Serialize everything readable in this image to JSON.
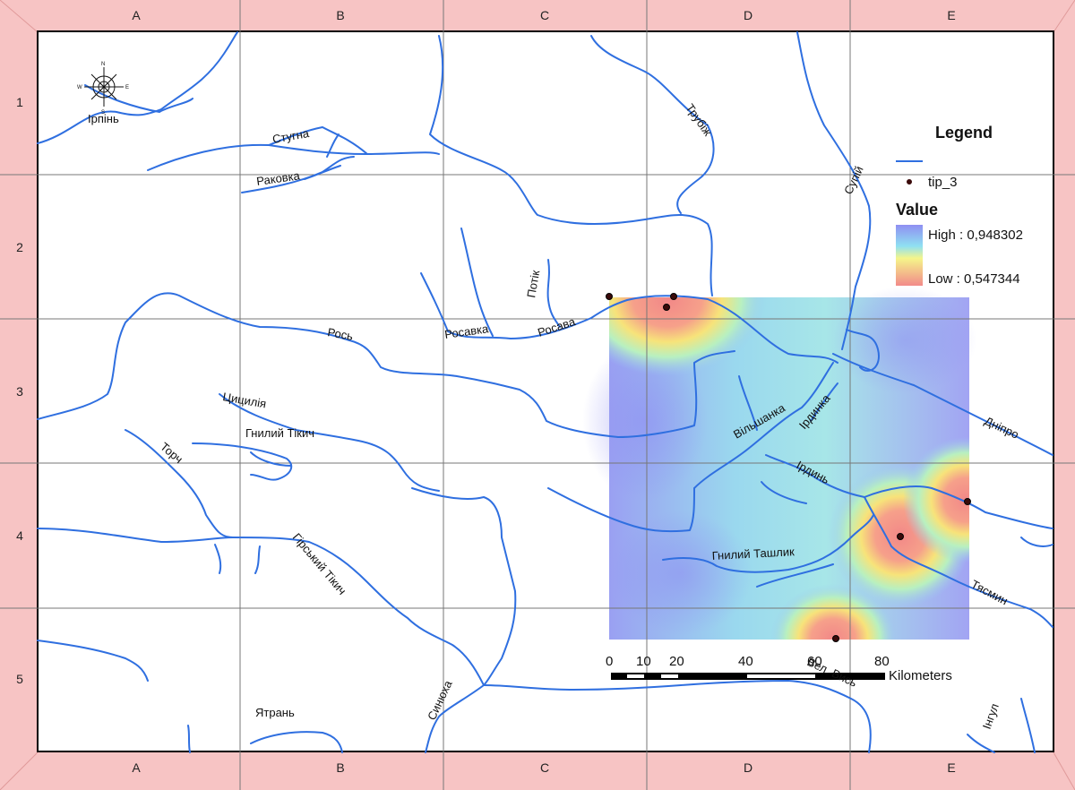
{
  "grid": {
    "columns": [
      "A",
      "B",
      "C",
      "D",
      "E"
    ],
    "rows": [
      "1",
      "2",
      "3",
      "4",
      "5"
    ]
  },
  "legend": {
    "title": "Legend",
    "point_layer": "tip_3",
    "value_title": "Value",
    "high_label": "High : 0,948302",
    "low_label": "Low : 0,547344",
    "high_color": "#8f8ff2",
    "low_color": "#f28a8a"
  },
  "scale_bar": {
    "ticks": [
      "0",
      "10",
      "20",
      "40",
      "60",
      "80"
    ],
    "unit": "Kilometers"
  },
  "compass": {
    "icon": "compass-rose-icon"
  },
  "rivers": {
    "irpin": "Ірпінь",
    "stugna": "Стугна",
    "rakovka": "Раковка",
    "trubizh": "Трубіж",
    "supiy": "Супій",
    "potik": "Потік",
    "rosava": "Росава",
    "rosavka": "Росавка",
    "ros": "Рось",
    "tsytsyliia": "Цицилія",
    "hnylyi_tikych": "Гнилий Тікич",
    "torch": "Торч",
    "hirskyi_tikych": "Гірський Тікич",
    "vilshanka": "Вільшанка",
    "irdynka": "Ірдинка",
    "irdyn": "Ірдинь",
    "dnipro": "Дніпро",
    "hnylyi_tashlyk": "Гнилий Ташлик",
    "tiasmyn": "Тясмин",
    "syniukha": "Синюха",
    "yatran": "Ятрань",
    "vel_vys": "Вел. Вись",
    "inhul": "Інгул"
  },
  "sample_points_count_label": ""
}
